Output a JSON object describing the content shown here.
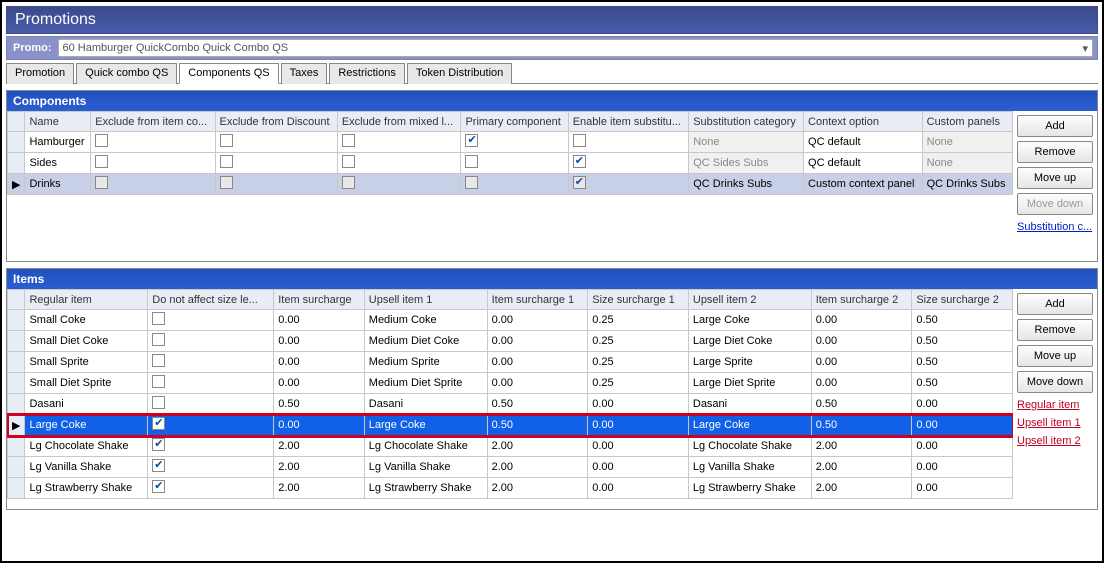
{
  "title": "Promotions",
  "promo": {
    "label": "Promo:",
    "value": "60 Hamburger QuickCombo Quick Combo QS"
  },
  "tabs": [
    {
      "label": "Promotion",
      "active": false
    },
    {
      "label": "Quick combo QS",
      "active": false
    },
    {
      "label": "Components QS",
      "active": true
    },
    {
      "label": "Taxes",
      "active": false
    },
    {
      "label": "Restrictions",
      "active": false
    },
    {
      "label": "Token Distribution",
      "active": false
    }
  ],
  "components": {
    "header": "Components",
    "columns": [
      "Name",
      "Exclude from item co...",
      "Exclude from Discount",
      "Exclude from mixed l...",
      "Primary component",
      "Enable item substitu...",
      "Substitution category",
      "Context option",
      "Custom panels"
    ],
    "rows": [
      {
        "ptr": "",
        "name": "Hamburger",
        "ex_item": false,
        "ex_disc": false,
        "ex_mix": false,
        "primary": true,
        "enable_sub": false,
        "sub_cat": "None",
        "ctx": "QC default",
        "panels": "None",
        "sel": false,
        "fade": true
      },
      {
        "ptr": "",
        "name": "Sides",
        "ex_item": false,
        "ex_disc": false,
        "ex_mix": false,
        "primary": false,
        "enable_sub": true,
        "sub_cat": "QC Sides Subs",
        "ctx": "QC default",
        "panels": "None",
        "sel": false,
        "fade": true
      },
      {
        "ptr": "▶",
        "name": "Drinks",
        "ex_item": false,
        "ex_disc": false,
        "ex_mix": false,
        "primary": false,
        "enable_sub": true,
        "sub_cat": "QC Drinks Subs",
        "ctx": "Custom context panel",
        "panels": "QC Drinks Subs",
        "sel": true,
        "fade": false
      }
    ],
    "buttons": [
      "Add",
      "Remove",
      "Move up",
      "Move down"
    ],
    "link": "Substitution c..."
  },
  "items": {
    "header": "Items",
    "columns": [
      "Regular item",
      "Do not affect size le...",
      "Item surcharge",
      "Upsell item 1",
      "Item surcharge 1",
      "Size surcharge 1",
      "Upsell item 2",
      "Item surcharge 2",
      "Size surcharge 2"
    ],
    "rows": [
      {
        "ptr": "",
        "reg": "Small Coke",
        "noaff": false,
        "sur": "0.00",
        "u1": "Medium Coke",
        "s1": "0.00",
        "z1": "0.25",
        "u2": "Large Coke",
        "s2": "0.00",
        "z2": "0.50",
        "hl": false
      },
      {
        "ptr": "",
        "reg": "Small Diet Coke",
        "noaff": false,
        "sur": "0.00",
        "u1": "Medium Diet Coke",
        "s1": "0.00",
        "z1": "0.25",
        "u2": "Large Diet Coke",
        "s2": "0.00",
        "z2": "0.50",
        "hl": false
      },
      {
        "ptr": "",
        "reg": "Small Sprite",
        "noaff": false,
        "sur": "0.00",
        "u1": "Medium Sprite",
        "s1": "0.00",
        "z1": "0.25",
        "u2": "Large Sprite",
        "s2": "0.00",
        "z2": "0.50",
        "hl": false
      },
      {
        "ptr": "",
        "reg": "Small Diet Sprite",
        "noaff": false,
        "sur": "0.00",
        "u1": "Medium Diet Sprite",
        "s1": "0.00",
        "z1": "0.25",
        "u2": "Large Diet Sprite",
        "s2": "0.00",
        "z2": "0.50",
        "hl": false
      },
      {
        "ptr": "",
        "reg": "Dasani",
        "noaff": false,
        "sur": "0.50",
        "u1": "Dasani",
        "s1": "0.50",
        "z1": "0.00",
        "u2": "Dasani",
        "s2": "0.50",
        "z2": "0.00",
        "hl": false
      },
      {
        "ptr": "▶",
        "reg": "Large Coke",
        "noaff": true,
        "sur": "0.00",
        "u1": "Large Coke",
        "s1": "0.50",
        "z1": "0.00",
        "u2": "Large Coke",
        "s2": "0.50",
        "z2": "0.00",
        "hl": true
      },
      {
        "ptr": "",
        "reg": "Lg Chocolate Shake",
        "noaff": true,
        "sur": "2.00",
        "u1": "Lg Chocolate Shake",
        "s1": "2.00",
        "z1": "0.00",
        "u2": "Lg Chocolate Shake",
        "s2": "2.00",
        "z2": "0.00",
        "hl": false
      },
      {
        "ptr": "",
        "reg": "Lg Vanilla Shake",
        "noaff": true,
        "sur": "2.00",
        "u1": "Lg Vanilla Shake",
        "s1": "2.00",
        "z1": "0.00",
        "u2": "Lg Vanilla Shake",
        "s2": "2.00",
        "z2": "0.00",
        "hl": false
      },
      {
        "ptr": "",
        "reg": "Lg Strawberry Shake",
        "noaff": true,
        "sur": "2.00",
        "u1": "Lg Strawberry Shake",
        "s1": "2.00",
        "z1": "0.00",
        "u2": "Lg Strawberry Shake",
        "s2": "2.00",
        "z2": "0.00",
        "hl": false
      }
    ],
    "buttons": [
      "Add",
      "Remove",
      "Move up",
      "Move down"
    ],
    "links": [
      "Regular item",
      "Upsell item 1",
      "Upsell item 2"
    ]
  },
  "colors": {
    "highlight": "#1060e8",
    "redbox": "#d00020"
  }
}
